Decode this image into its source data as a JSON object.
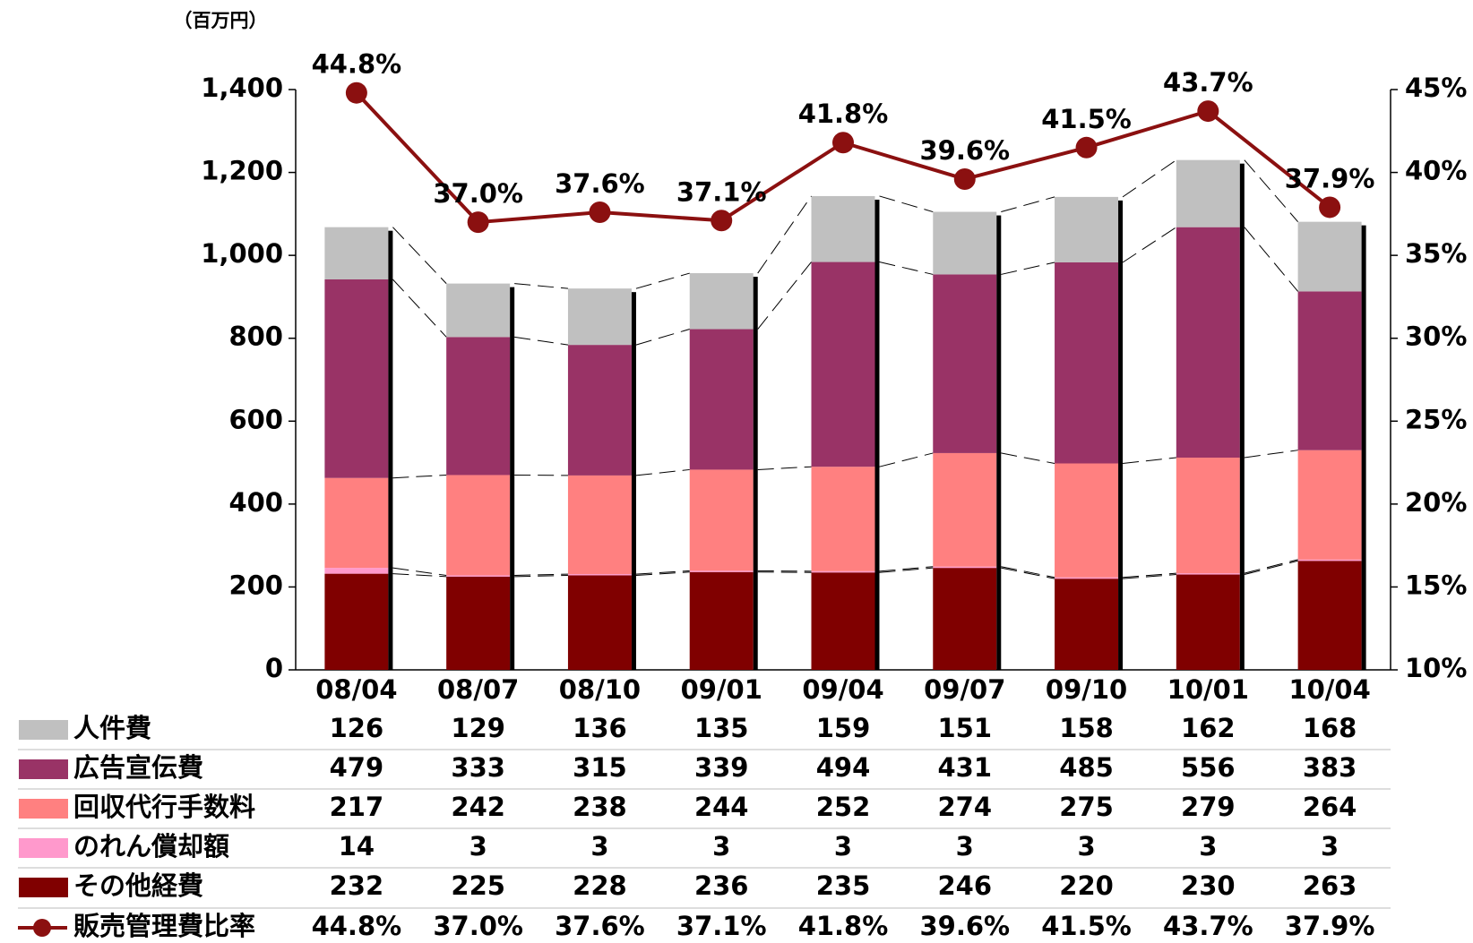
{
  "chart_data": {
    "type": "bar",
    "stacked": true,
    "unit_label": "（百万円）",
    "categories": [
      "08/04",
      "08/07",
      "08/10",
      "09/01",
      "09/04",
      "09/07",
      "09/10",
      "10/01",
      "10/04"
    ],
    "series": [
      {
        "name": "人件費",
        "color": "#c0c0c0",
        "values": [
          126,
          129,
          136,
          135,
          159,
          151,
          158,
          162,
          168
        ]
      },
      {
        "name": "広告宣伝費",
        "color": "#993366",
        "values": [
          479,
          333,
          315,
          339,
          494,
          431,
          485,
          556,
          383
        ]
      },
      {
        "name": "回収代行手数料",
        "color": "#ff8080",
        "values": [
          217,
          242,
          238,
          244,
          252,
          274,
          275,
          279,
          264
        ]
      },
      {
        "name": "のれん償却額",
        "color": "#ff99cc",
        "values": [
          14,
          3,
          3,
          3,
          3,
          3,
          3,
          3,
          3
        ]
      },
      {
        "name": "その他経費",
        "color": "#800000",
        "values": [
          232,
          225,
          228,
          236,
          235,
          246,
          220,
          230,
          263
        ]
      },
      {
        "name": "販売管理費比率",
        "color": "#8b1010",
        "type": "line",
        "axis": "y2",
        "values": [
          44.8,
          37.0,
          37.6,
          37.1,
          41.8,
          39.6,
          41.5,
          43.7,
          37.9
        ],
        "value_labels": [
          "44.8%",
          "37.0%",
          "37.6%",
          "37.1%",
          "41.8%",
          "39.6%",
          "41.5%",
          "43.7%",
          "37.9%"
        ]
      }
    ],
    "ylim": [
      0,
      1400
    ],
    "yticks": [
      0,
      200,
      400,
      600,
      800,
      {
        "value": 1000,
        "label": "1,000"
      },
      {
        "value": 1200,
        "label": "1,200"
      },
      {
        "value": 1400,
        "label": "1,400"
      }
    ],
    "y2lim": [
      10,
      45
    ],
    "y2ticks": [
      {
        "value": 10,
        "label": "10%"
      },
      {
        "value": 15,
        "label": "15%"
      },
      {
        "value": 20,
        "label": "20%"
      },
      {
        "value": 25,
        "label": "25%"
      },
      {
        "value": 30,
        "label": "30%"
      },
      {
        "value": 35,
        "label": "35%"
      },
      {
        "value": 40,
        "label": "40%"
      },
      {
        "value": 45,
        "label": "45%"
      }
    ],
    "grid": false
  }
}
